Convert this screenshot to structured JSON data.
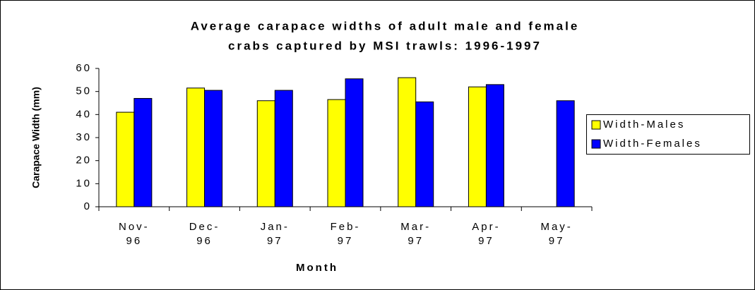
{
  "chart_data": {
    "type": "bar",
    "title": [
      "Average carapace widths of adult male and female",
      "crabs captured by MSI trawls: 1996-1997"
    ],
    "x_label": "Month",
    "y_label": "Carapace Width (mm)",
    "categories": [
      "Nov-96",
      "Dec-96",
      "Jan-97",
      "Feb-97",
      "Mar-97",
      "Apr-97",
      "May-97"
    ],
    "series": [
      {
        "name": "Width-Males",
        "color": "#ffff00",
        "values": [
          41,
          51.5,
          46,
          46.5,
          56,
          52,
          null
        ]
      },
      {
        "name": "Width-Females",
        "color": "#0000ff",
        "values": [
          47,
          50.5,
          50.5,
          55.5,
          45.5,
          53,
          46
        ]
      }
    ],
    "ylim": [
      0,
      60
    ],
    "yticks": [
      0,
      10,
      20,
      30,
      40,
      50,
      60
    ],
    "grid": false,
    "legend": "right"
  }
}
